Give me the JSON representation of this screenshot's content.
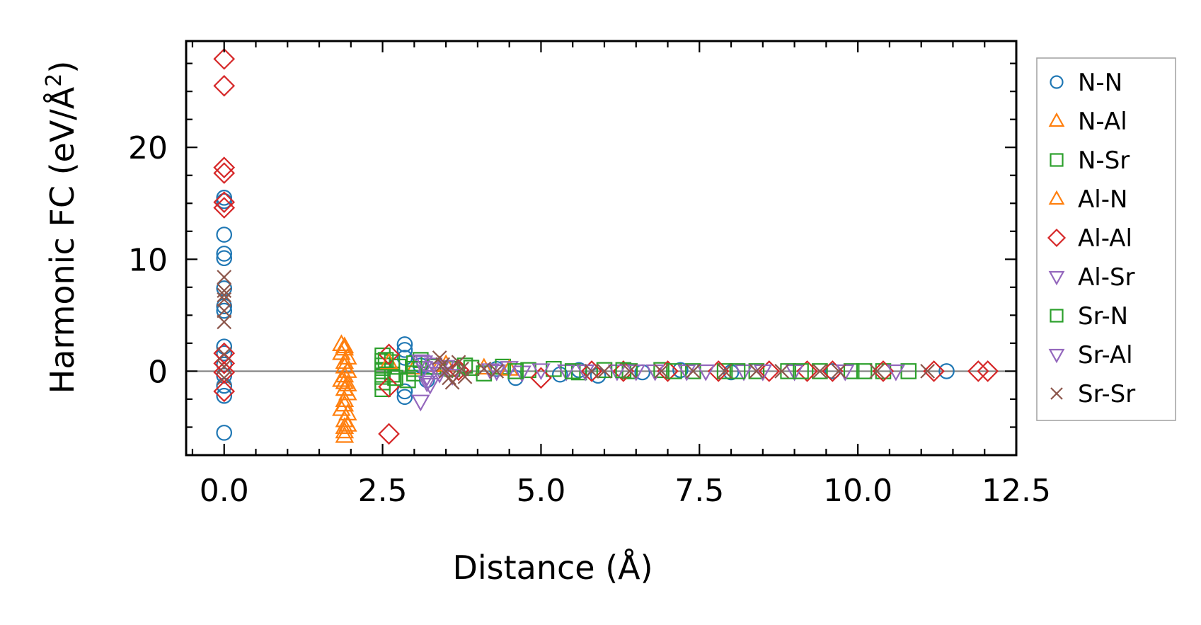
{
  "chart_data": {
    "type": "scatter",
    "xlabel": "Distance (Å)",
    "ylabel_main": "Harmonic FC (eV/Å",
    "ylabel_sup": "2",
    "ylabel_end": ")",
    "xlim": [
      -0.6,
      12.5
    ],
    "ylim": [
      -7.5,
      29.5
    ],
    "xticks": [
      0.0,
      2.5,
      5.0,
      7.5,
      10.0,
      12.5
    ],
    "xtick_labels": [
      "0.0",
      "2.5",
      "5.0",
      "7.5",
      "10.0",
      "12.5"
    ],
    "yticks": [
      0,
      10,
      20
    ],
    "ytick_labels": [
      "0",
      "10",
      "20"
    ],
    "zero_line": true,
    "grid": false,
    "legend_position": "outside-right",
    "series": [
      {
        "name": "N-N",
        "marker": "circle",
        "color": "#1f77b4",
        "points": [
          [
            0,
            15.5
          ],
          [
            0,
            15.2
          ],
          [
            0,
            12.2
          ],
          [
            0,
            10.5
          ],
          [
            0,
            10.1
          ],
          [
            0,
            7.4
          ],
          [
            0,
            5.8
          ],
          [
            0,
            5.4
          ],
          [
            0,
            2.2
          ],
          [
            0,
            1.6
          ],
          [
            0,
            0.6
          ],
          [
            0,
            -0.4
          ],
          [
            0,
            -1.3
          ],
          [
            0,
            -2.2
          ],
          [
            0,
            -5.5
          ],
          [
            2.85,
            2.4
          ],
          [
            2.85,
            1.9
          ],
          [
            2.85,
            1.2
          ],
          [
            2.85,
            -1.8
          ],
          [
            2.85,
            -2.3
          ],
          [
            3.1,
            0.5
          ],
          [
            3.2,
            -0.8
          ],
          [
            4.3,
            0.2
          ],
          [
            4.6,
            -0.6
          ],
          [
            5.3,
            -0.3
          ],
          [
            5.6,
            0.1
          ],
          [
            5.9,
            -0.4
          ],
          [
            6.6,
            -0.1
          ],
          [
            7.2,
            0.1
          ],
          [
            8.0,
            -0.1
          ],
          [
            9.6,
            0.0
          ],
          [
            11.4,
            0.0
          ]
        ]
      },
      {
        "name": "N-Al",
        "marker": "triangle-up",
        "color": "#ff7f0e",
        "points": [
          [
            1.85,
            2.4
          ],
          [
            1.9,
            2.0
          ],
          [
            1.85,
            1.6
          ],
          [
            1.95,
            1.2
          ],
          [
            1.9,
            0.8
          ],
          [
            1.9,
            0.4
          ],
          [
            1.95,
            0.0
          ],
          [
            1.9,
            -0.4
          ],
          [
            1.85,
            -0.8
          ],
          [
            1.95,
            -1.2
          ],
          [
            1.9,
            -1.6
          ],
          [
            1.95,
            -2.0
          ],
          [
            1.9,
            -2.6
          ],
          [
            1.9,
            -3.0
          ],
          [
            1.85,
            -3.4
          ],
          [
            1.95,
            -3.8
          ],
          [
            1.9,
            -4.4
          ],
          [
            1.95,
            -4.8
          ],
          [
            1.9,
            -5.4
          ],
          [
            1.9,
            -5.8
          ],
          [
            3.0,
            0.3
          ],
          [
            3.4,
            0.5
          ],
          [
            4.1,
            0.3
          ]
        ]
      },
      {
        "name": "N-Sr",
        "marker": "square",
        "color": "#2ca02c",
        "points": [
          [
            2.5,
            1.4
          ],
          [
            2.5,
            0.9
          ],
          [
            2.5,
            0.5
          ],
          [
            2.5,
            0.0
          ],
          [
            2.5,
            -0.5
          ],
          [
            2.5,
            -1.0
          ],
          [
            2.5,
            -1.6
          ],
          [
            2.65,
            0.8
          ],
          [
            2.65,
            -0.3
          ],
          [
            2.75,
            0.4
          ],
          [
            2.9,
            -0.8
          ],
          [
            3.0,
            0.7
          ],
          [
            3.0,
            -0.2
          ],
          [
            3.1,
            1.0
          ],
          [
            3.3,
            0.4
          ],
          [
            3.6,
            0.2
          ],
          [
            3.8,
            0.5
          ],
          [
            4.1,
            -0.2
          ],
          [
            4.4,
            0.4
          ],
          [
            4.8,
            0.1
          ],
          [
            5.2,
            0.2
          ],
          [
            5.6,
            -0.1
          ],
          [
            6.0,
            0.1
          ],
          [
            6.4,
            0.0
          ],
          [
            6.9,
            0.1
          ],
          [
            7.4,
            0.0
          ],
          [
            7.9,
            0.0
          ],
          [
            8.4,
            0.0
          ],
          [
            8.9,
            0.0
          ],
          [
            9.4,
            0.0
          ],
          [
            9.9,
            0.0
          ],
          [
            10.4,
            0.0
          ],
          [
            10.8,
            0.0
          ]
        ]
      },
      {
        "name": "Al-N",
        "marker": "triangle-up",
        "color": "#ff7f0e",
        "points": [
          [
            1.9,
            2.2
          ],
          [
            1.9,
            -1.0
          ],
          [
            1.9,
            -5.0
          ],
          [
            2.6,
            0.8
          ],
          [
            3.5,
            0.6
          ],
          [
            4.5,
            0.2
          ]
        ]
      },
      {
        "name": "Al-Al",
        "marker": "diamond",
        "color": "#d62728",
        "points": [
          [
            0,
            27.9
          ],
          [
            0,
            25.5
          ],
          [
            0,
            18.2
          ],
          [
            0,
            17.7
          ],
          [
            0,
            15.1
          ],
          [
            0,
            14.6
          ],
          [
            0,
            1.6
          ],
          [
            0,
            0.7
          ],
          [
            0,
            -0.1
          ],
          [
            0,
            -1.8
          ],
          [
            2.6,
            1.5
          ],
          [
            2.6,
            -1.4
          ],
          [
            2.6,
            -5.6
          ],
          [
            3.7,
            0.1
          ],
          [
            5.0,
            -0.6
          ],
          [
            5.8,
            0.0
          ],
          [
            6.3,
            0.0
          ],
          [
            7.0,
            0.0
          ],
          [
            7.8,
            0.0
          ],
          [
            8.6,
            0.0
          ],
          [
            9.2,
            0.0
          ],
          [
            9.6,
            0.0
          ],
          [
            10.4,
            0.0
          ],
          [
            11.2,
            0.0
          ],
          [
            11.9,
            0.0
          ],
          [
            12.05,
            0.0
          ]
        ]
      },
      {
        "name": "Al-Sr",
        "marker": "triangle-down",
        "color": "#9467bd",
        "points": [
          [
            3.1,
            0.9
          ],
          [
            3.15,
            0.3
          ],
          [
            3.2,
            -0.5
          ],
          [
            3.25,
            -1.2
          ],
          [
            3.1,
            -2.7
          ],
          [
            3.3,
            0.6
          ],
          [
            3.4,
            -0.2
          ],
          [
            3.5,
            0.4
          ],
          [
            4.2,
            0.1
          ],
          [
            4.5,
            0.3
          ],
          [
            4.7,
            -0.1
          ],
          [
            5.4,
            0.0
          ],
          [
            6.2,
            0.0
          ],
          [
            6.8,
            0.0
          ],
          [
            7.6,
            0.0
          ],
          [
            8.2,
            0.0
          ],
          [
            9.0,
            0.0
          ],
          [
            9.8,
            0.0
          ],
          [
            10.6,
            0.0
          ]
        ]
      },
      {
        "name": "Sr-N",
        "marker": "square",
        "color": "#2ca02c",
        "points": [
          [
            2.55,
            1.0
          ],
          [
            2.7,
            -0.6
          ],
          [
            3.0,
            0.2
          ],
          [
            3.9,
            0.3
          ],
          [
            4.6,
            0.0
          ],
          [
            5.5,
            0.0
          ],
          [
            6.3,
            0.1
          ],
          [
            7.1,
            0.0
          ],
          [
            8.1,
            0.0
          ],
          [
            9.1,
            0.0
          ],
          [
            10.1,
            0.0
          ]
        ]
      },
      {
        "name": "Sr-Al",
        "marker": "triangle-down",
        "color": "#9467bd",
        "points": [
          [
            3.15,
            0.8
          ],
          [
            3.2,
            -1.0
          ],
          [
            3.4,
            0.2
          ],
          [
            3.6,
            -0.4
          ],
          [
            4.3,
            0.0
          ],
          [
            5.0,
            0.1
          ],
          [
            5.7,
            0.0
          ],
          [
            6.5,
            0.0
          ],
          [
            7.3,
            0.0
          ],
          [
            8.5,
            0.0
          ]
        ]
      },
      {
        "name": "Sr-Sr",
        "marker": "x",
        "color": "#8c564b",
        "points": [
          [
            0,
            8.4
          ],
          [
            0,
            7.2
          ],
          [
            0,
            6.8
          ],
          [
            0,
            6.4
          ],
          [
            0,
            5.4
          ],
          [
            0,
            4.4
          ],
          [
            0,
            1.5
          ],
          [
            0,
            0.4
          ],
          [
            0,
            -0.6
          ],
          [
            3.4,
            1.2
          ],
          [
            3.45,
            0.6
          ],
          [
            3.5,
            0.0
          ],
          [
            3.55,
            -0.6
          ],
          [
            3.6,
            -1.0
          ],
          [
            3.7,
            0.8
          ],
          [
            3.75,
            0.2
          ],
          [
            3.8,
            -0.5
          ],
          [
            4.1,
            0.2
          ],
          [
            4.3,
            0.0
          ],
          [
            5.8,
            0.0
          ],
          [
            6.0,
            0.0
          ],
          [
            6.4,
            0.0
          ],
          [
            6.9,
            0.0
          ],
          [
            7.4,
            0.0
          ],
          [
            7.9,
            0.0
          ],
          [
            8.4,
            0.0
          ],
          [
            8.8,
            0.0
          ],
          [
            9.4,
            0.0
          ],
          [
            9.7,
            0.0
          ],
          [
            10.3,
            0.0
          ],
          [
            11.1,
            0.0
          ]
        ]
      }
    ]
  }
}
